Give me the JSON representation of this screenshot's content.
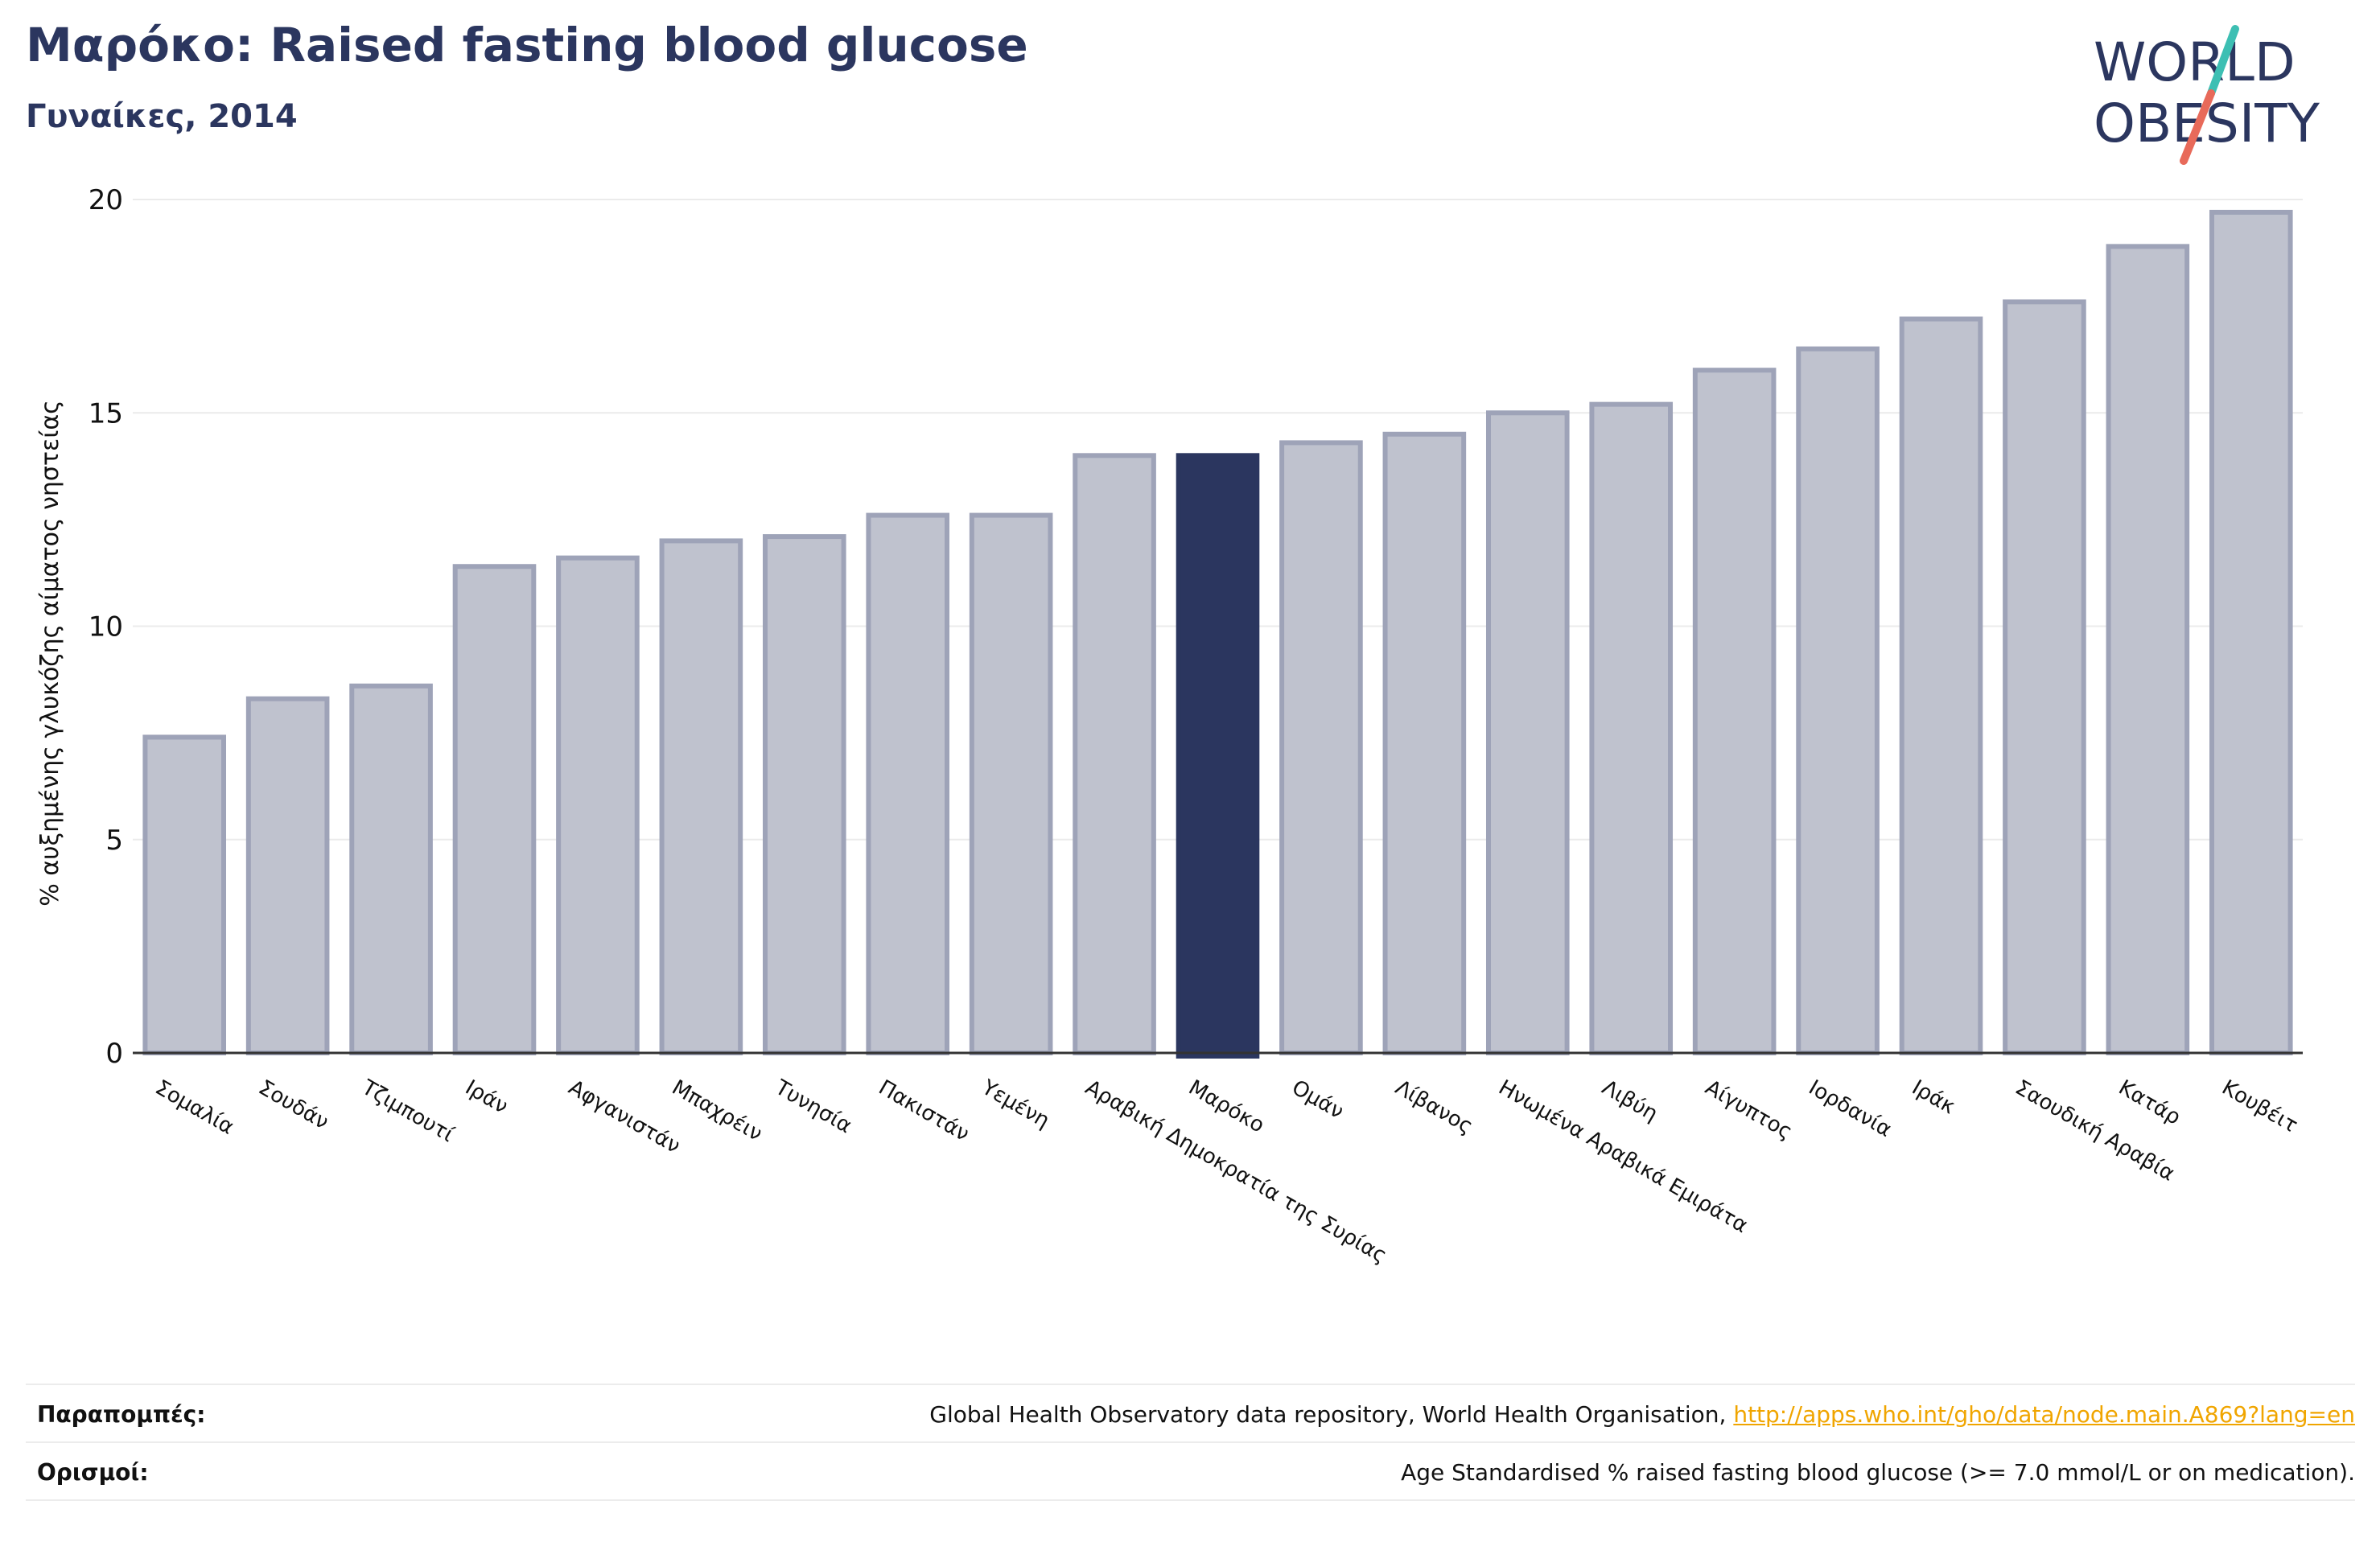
{
  "header": {
    "title": "Μαρόκο: Raised fasting blood glucose",
    "subtitle": "Γυναίκες, 2014"
  },
  "logo": {
    "line1": "WORLD",
    "line2": "OBESITY",
    "colors": {
      "text": "#2b365f",
      "slash_top": "#3dbfb3",
      "slash_bottom": "#e86a5a"
    }
  },
  "chart_data": {
    "type": "bar",
    "ylabel": "% αυξημένης γλυκόζης αίματος νηστείας",
    "xlabel": "",
    "ylim": [
      0,
      20
    ],
    "yticks": [
      0,
      5,
      10,
      15,
      20
    ],
    "grid": true,
    "highlight": "Μαρόκο",
    "colors": {
      "bar": "#bfc2ce",
      "bar_border": "#9ea3b8",
      "highlight": "#2b365f",
      "grid": "#ebebeb",
      "axis": "#333333"
    },
    "categories": [
      "Σομαλία",
      "Σουδάν",
      "Τζιμπουτί",
      "Ιράν",
      "Αφγανιστάν",
      "Μπαχρέιν",
      "Τυνησία",
      "Πακιστάν",
      "Υεμένη",
      "Αραβική Δημοκρατία της Συρίας",
      "Μαρόκο",
      "Ομάν",
      "Λίβανος",
      "Ηνωμένα Αραβικά Εμιράτα",
      "Λιβύη",
      "Αίγυπτος",
      "Ιορδανία",
      "Ιράκ",
      "Σαουδική Αραβία",
      "Κατάρ",
      "Κουβέιτ"
    ],
    "values": [
      7.4,
      8.3,
      8.6,
      11.4,
      11.6,
      12.0,
      12.1,
      12.6,
      12.6,
      14.0,
      14.0,
      14.3,
      14.5,
      15.0,
      15.2,
      16.0,
      16.5,
      17.2,
      17.6,
      18.9,
      19.7
    ]
  },
  "footer": {
    "references_label": "Παραπομπές:",
    "references_text": "Global Health Observatory data repository, World Health Organisation, ",
    "references_link": "http://apps.who.int/gho/data/node.main.A869?lang=en",
    "definitions_label": "Ορισμοί:",
    "definitions_text": "Age Standardised % raised fasting blood glucose (>= 7.0 mmol/L or on medication)."
  }
}
